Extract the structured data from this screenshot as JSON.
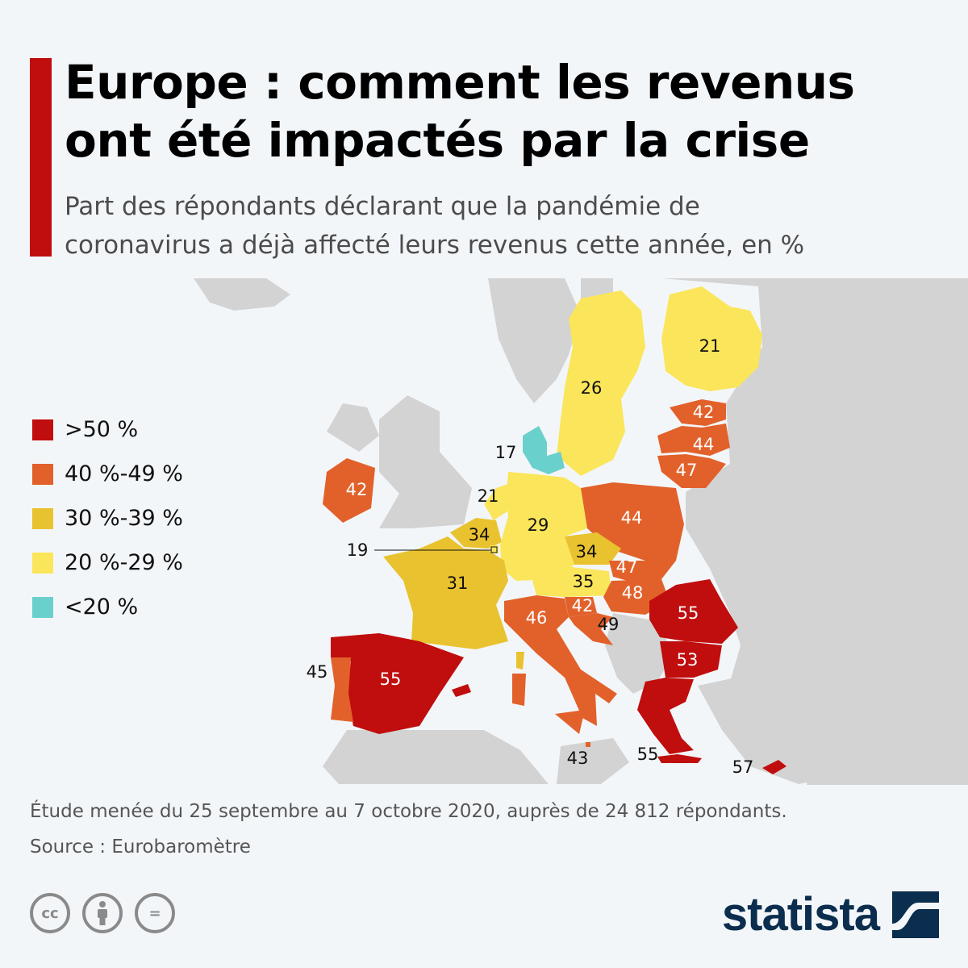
{
  "header": {
    "title_line1": "Europe : comment les revenus",
    "title_line2": "ont été impactés par la crise",
    "subtitle_line1": "Part des répondants déclarant que la pandémie de",
    "subtitle_line2": "coronavirus a déjà affecté leurs revenus cette année, en %"
  },
  "colors": {
    "accent": "#c00d0d",
    "over_50": "#c00d0d",
    "r40_49": "#e2612b",
    "r30_39": "#e9c22f",
    "r20_29": "#fbe55a",
    "under_20": "#6ad0cc",
    "non_eu": "#d3d3d3",
    "sea": "#f3f6f9"
  },
  "legend": [
    {
      "label": ">50 %",
      "color": "#c00d0d"
    },
    {
      "label": "40 %-49 %",
      "color": "#e2612b"
    },
    {
      "label": "30 %-39 %",
      "color": "#e9c22f"
    },
    {
      "label": "20 %-29 %",
      "color": "#fbe55a"
    },
    {
      "label": "<20 %",
      "color": "#6ad0cc"
    }
  ],
  "countries": {
    "finland": "21",
    "sweden": "26",
    "estonia": "42",
    "latvia": "44",
    "lithuania": "47",
    "denmark": "17",
    "netherlands": "21",
    "ireland": "42",
    "poland": "44",
    "belgium": "34",
    "germany": "29",
    "luxembourg": "19",
    "czechia": "34",
    "slovakia": "47",
    "france": "31",
    "austria": "35",
    "hungary": "48",
    "slovenia": "42",
    "romania": "55",
    "croatia": "49",
    "italy": "46",
    "bulgaria": "53",
    "portugal": "45",
    "spain": "55",
    "malta": "43",
    "greece": "55",
    "cyprus": "57"
  },
  "footer": {
    "study_note": "Étude menée du 25 septembre au 7 octobre 2020, auprès de 24 812 répondants.",
    "source": "Source : Eurobaromètre",
    "cc_icons": [
      "cc-icon",
      "attribution-icon",
      "no-derivatives-icon"
    ],
    "cc_cc": "cc",
    "cc_eq": "=",
    "brand": "statista"
  }
}
